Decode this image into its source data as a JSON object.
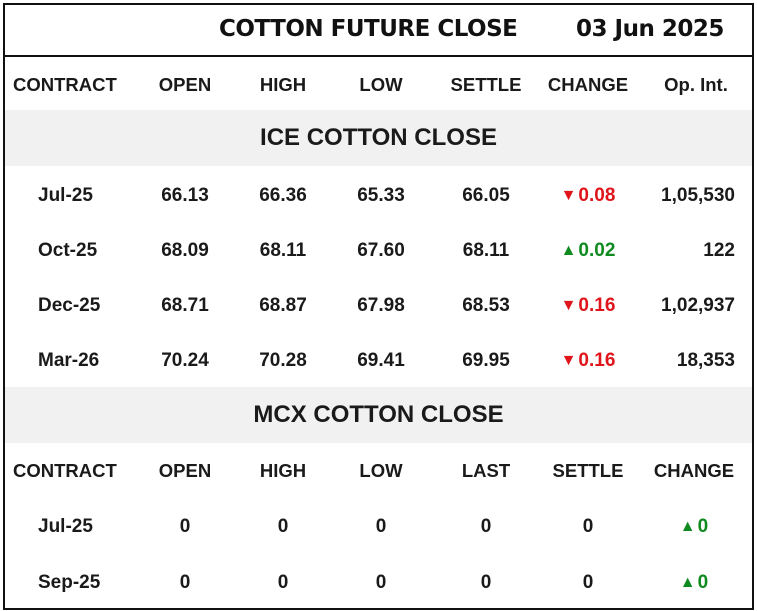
{
  "title": "COTTON FUTURE CLOSE",
  "date": "03 Jun 2025",
  "colors": {
    "down": "#e0151b",
    "up": "#0f8a1e",
    "band": "#f1f1f1"
  },
  "ice": {
    "headers": [
      "CONTRACT",
      "OPEN",
      "HIGH",
      "LOW",
      "SETTLE",
      "CHANGE",
      "Op. Int."
    ],
    "section_title": "ICE COTTON CLOSE",
    "rows": [
      {
        "contract": "Jul-25",
        "open": "66.13",
        "high": "66.36",
        "low": "65.33",
        "settle": "66.05",
        "change_arrow": "▼",
        "change": "0.08",
        "direction": "down",
        "oi": "1,05,530"
      },
      {
        "contract": "Oct-25",
        "open": "68.09",
        "high": "68.11",
        "low": "67.60",
        "settle": "68.11",
        "change_arrow": "▲",
        "change": "0.02",
        "direction": "up",
        "oi": "122"
      },
      {
        "contract": "Dec-25",
        "open": "68.71",
        "high": "68.87",
        "low": "67.98",
        "settle": "68.53",
        "change_arrow": "▼",
        "change": "0.16",
        "direction": "down",
        "oi": "1,02,937"
      },
      {
        "contract": "Mar-26",
        "open": "70.24",
        "high": "70.28",
        "low": "69.41",
        "settle": "69.95",
        "change_arrow": "▼",
        "change": "0.16",
        "direction": "down",
        "oi": "18,353"
      }
    ]
  },
  "mcx": {
    "section_title": "MCX COTTON CLOSE",
    "headers": [
      "CONTRACT",
      "OPEN",
      "HIGH",
      "LOW",
      "LAST",
      "SETTLE",
      "CHANGE"
    ],
    "rows": [
      {
        "contract": "Jul-25",
        "open": "0",
        "high": "0",
        "low": "0",
        "last": "0",
        "settle": "0",
        "change_arrow": "▲",
        "change": "0",
        "direction": "up"
      },
      {
        "contract": "Sep-25",
        "open": "0",
        "high": "0",
        "low": "0",
        "last": "0",
        "settle": "0",
        "change_arrow": "▲",
        "change": "0",
        "direction": "up"
      }
    ]
  }
}
